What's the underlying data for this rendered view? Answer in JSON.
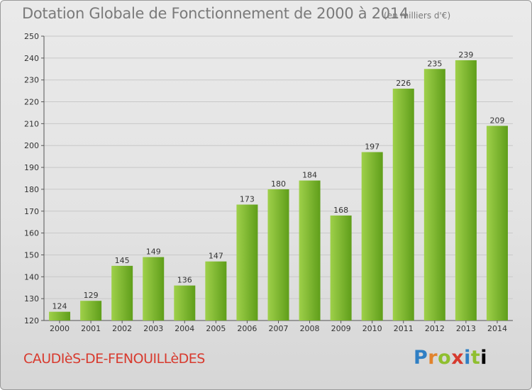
{
  "header": {
    "title": "Dotation Globale de Fonctionnement de 2000 à 2014",
    "subtitle": "(en milliers d'€)"
  },
  "footer": {
    "commune": "CAUDIèS-DE-FENOUILLèDES",
    "logo_letters": [
      "P",
      "r",
      "o",
      "x",
      "i",
      "t",
      "i"
    ]
  },
  "colors": {
    "bar_light": "#9fd04a",
    "bar_dark": "#5f9e1a",
    "grid": "#c8c8c8",
    "axis": "#555555",
    "commune_text": "#d83a2e"
  },
  "chart_data": {
    "type": "bar",
    "title": "Dotation Globale de Fonctionnement de 2000 à 2014",
    "subtitle": "(en milliers d'€)",
    "xlabel": "",
    "ylabel": "",
    "ylim": [
      120,
      250
    ],
    "yticks": [
      120,
      130,
      140,
      150,
      160,
      170,
      180,
      190,
      200,
      210,
      220,
      230,
      240,
      250
    ],
    "grid": "horizontal",
    "categories": [
      "2000",
      "2001",
      "2002",
      "2003",
      "2004",
      "2005",
      "2006",
      "2007",
      "2008",
      "2009",
      "2010",
      "2011",
      "2012",
      "2013",
      "2014"
    ],
    "values": [
      124,
      129,
      145,
      149,
      136,
      147,
      173,
      180,
      184,
      168,
      197,
      226,
      235,
      239,
      209
    ]
  }
}
